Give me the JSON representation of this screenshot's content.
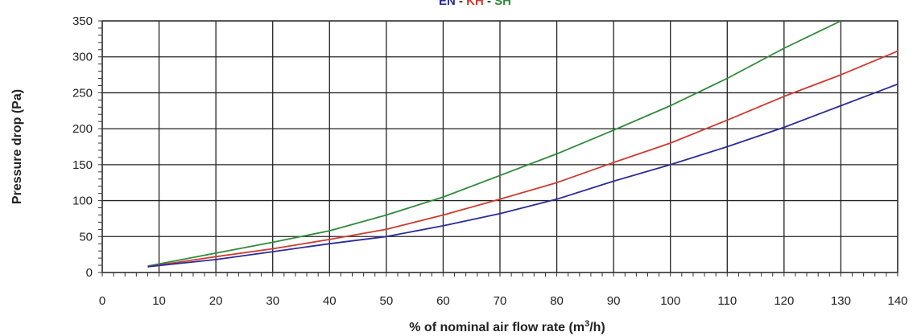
{
  "chart_data": {
    "type": "line",
    "title_parts": [
      {
        "text": "EN",
        "color": "#2b2b9a"
      },
      {
        "text": " - ",
        "color": "#222222"
      },
      {
        "text": "KH",
        "color": "#d03a2f"
      },
      {
        "text": " - ",
        "color": "#222222"
      },
      {
        "text": "SH",
        "color": "#2e8b3a"
      }
    ],
    "xlabel": "% of nominal air flow rate (m",
    "xlabel_sup": "3",
    "xlabel_end": "/h)",
    "ylabel": "Pressure drop (Pa)",
    "xlim": [
      0,
      140
    ],
    "ylim": [
      0,
      350
    ],
    "xticks": [
      0,
      10,
      20,
      30,
      40,
      50,
      60,
      70,
      80,
      90,
      100,
      110,
      120,
      130,
      140
    ],
    "yticks": [
      0,
      50,
      100,
      150,
      200,
      250,
      300,
      350
    ],
    "grid": true,
    "series": [
      {
        "color": "#2e8b3a",
        "x": [
          8,
          20,
          30,
          40,
          50,
          60,
          70,
          80,
          90,
          100,
          110,
          120,
          130
        ],
        "y": [
          9,
          27,
          42,
          58,
          80,
          105,
          135,
          165,
          198,
          232,
          270,
          312,
          350
        ]
      },
      {
        "color": "#d03a2f",
        "x": [
          8,
          20,
          30,
          40,
          50,
          60,
          70,
          80,
          90,
          100,
          110,
          120,
          130,
          140
        ],
        "y": [
          8,
          22,
          33,
          46,
          60,
          80,
          102,
          125,
          153,
          180,
          212,
          245,
          275,
          308
        ]
      },
      {
        "color": "#2b2b9a",
        "x": [
          8,
          20,
          30,
          40,
          50,
          60,
          70,
          80,
          90,
          100,
          110,
          120,
          130,
          140
        ],
        "y": [
          8,
          18,
          29,
          40,
          50,
          65,
          82,
          102,
          127,
          150,
          175,
          202,
          232,
          262
        ]
      }
    ]
  }
}
